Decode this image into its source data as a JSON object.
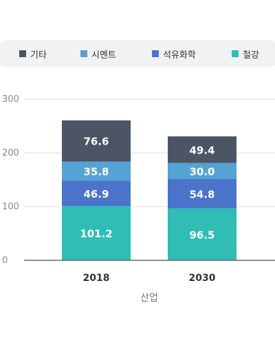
{
  "legend": [
    {
      "label": "기타",
      "color": "#4b5563"
    },
    {
      "label": "시멘트",
      "color": "#55a2d4"
    },
    {
      "label": "석유화학",
      "color": "#4b73c9"
    },
    {
      "label": "철강",
      "color": "#2fbdb6"
    }
  ],
  "chart_data": {
    "type": "bar",
    "stacked": true,
    "categories": [
      "2018",
      "2030"
    ],
    "series": [
      {
        "name": "철강",
        "color": "#2fbdb6",
        "values": [
          101.2,
          96.5
        ]
      },
      {
        "name": "석유화학",
        "color": "#4b73c9",
        "values": [
          46.9,
          54.8
        ]
      },
      {
        "name": "시멘트",
        "color": "#55a2d4",
        "values": [
          35.8,
          30.0
        ]
      },
      {
        "name": "기타",
        "color": "#4b5563",
        "values": [
          76.6,
          49.4
        ]
      }
    ],
    "value_labels": [
      [
        "101.2",
        "96.5"
      ],
      [
        "46.9",
        "54.8"
      ],
      [
        "35.8",
        "30.0"
      ],
      [
        "76.6",
        "49.4"
      ]
    ],
    "xlabel": "산업",
    "ylabel": "",
    "ylim": [
      0,
      300
    ],
    "yticks": [
      "0",
      "100",
      "200",
      "300"
    ],
    "grid": true,
    "legend_position": "top"
  }
}
